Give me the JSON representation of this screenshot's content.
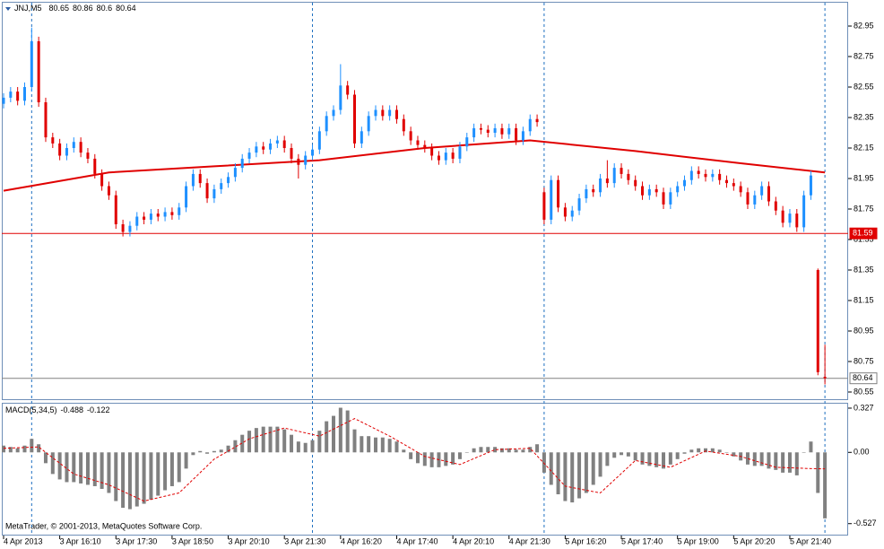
{
  "chart_data": [
    {
      "type": "candlestick",
      "title": "JNJ,M5",
      "categories": [
        "4 Apr 2013",
        null,
        null,
        null,
        null,
        null,
        null,
        null,
        "3 Apr 16:10",
        null,
        null,
        null,
        null,
        null,
        null,
        null,
        "3 Apr 17:30",
        null,
        null,
        null,
        null,
        null,
        null,
        null,
        "3 Apr 18:50",
        null,
        null,
        null,
        null,
        null,
        null,
        null,
        "3 Apr 20:10",
        null,
        null,
        null,
        null,
        null,
        null,
        null,
        "3 Apr 21:30",
        null,
        null,
        null,
        null,
        null,
        null,
        null,
        "4 Apr 16:20",
        null,
        null,
        null,
        null,
        null,
        null,
        null,
        "4 Apr 17:40",
        null,
        null,
        null,
        null,
        null,
        null,
        null,
        "4 Apr 20:10",
        null,
        null,
        null,
        null,
        null,
        null,
        null,
        "4 Apr 21:30",
        null,
        null,
        null,
        null,
        null,
        null,
        null,
        "5 Apr 16:20",
        null,
        null,
        null,
        null,
        null,
        null,
        null,
        "5 Apr 17:40",
        null,
        null,
        null,
        null,
        null,
        null,
        null,
        "5 Apr 19:00",
        null,
        null,
        null,
        null,
        null,
        null,
        null,
        "5 Apr 20:20",
        null,
        null,
        null,
        null,
        null,
        null,
        null,
        "5 Apr 21:40",
        null,
        null,
        null,
        null,
        null
      ],
      "ohlc": [
        [
          82.44,
          82.51,
          82.41,
          82.48
        ],
        [
          82.48,
          82.55,
          82.45,
          82.52
        ],
        [
          82.52,
          82.55,
          82.43,
          82.46
        ],
        [
          82.46,
          82.58,
          82.43,
          82.55
        ],
        [
          82.55,
          82.94,
          82.52,
          82.85
        ],
        [
          82.85,
          82.88,
          82.42,
          82.45
        ],
        [
          82.45,
          82.48,
          82.19,
          82.22
        ],
        [
          82.22,
          82.25,
          82.15,
          82.18
        ],
        [
          82.18,
          82.21,
          82.07,
          82.1
        ],
        [
          82.1,
          82.18,
          82.07,
          82.15
        ],
        [
          82.15,
          82.22,
          82.12,
          82.19
        ],
        [
          82.19,
          82.22,
          82.09,
          82.12
        ],
        [
          82.12,
          82.15,
          82.05,
          82.08
        ],
        [
          82.08,
          82.11,
          81.95,
          81.98
        ],
        [
          81.98,
          82.01,
          81.87,
          81.9
        ],
        [
          81.9,
          81.93,
          81.81,
          81.84
        ],
        [
          81.84,
          81.87,
          81.62,
          81.65
        ],
        [
          81.65,
          81.68,
          81.57,
          81.6
        ],
        [
          81.6,
          81.67,
          81.57,
          81.64
        ],
        [
          81.64,
          81.73,
          81.61,
          81.7
        ],
        [
          81.7,
          81.73,
          81.65,
          81.68
        ],
        [
          81.68,
          81.75,
          81.65,
          81.72
        ],
        [
          81.72,
          81.75,
          81.67,
          81.7
        ],
        [
          81.7,
          81.76,
          81.67,
          81.73
        ],
        [
          81.73,
          81.76,
          81.68,
          81.71
        ],
        [
          81.71,
          81.79,
          81.68,
          81.76
        ],
        [
          81.76,
          81.93,
          81.73,
          81.9
        ],
        [
          81.9,
          82.01,
          81.87,
          81.98
        ],
        [
          81.98,
          82.01,
          81.89,
          81.92
        ],
        [
          81.92,
          81.95,
          81.79,
          81.82
        ],
        [
          81.82,
          81.91,
          81.79,
          81.88
        ],
        [
          81.88,
          81.95,
          81.85,
          81.92
        ],
        [
          81.92,
          81.99,
          81.89,
          81.96
        ],
        [
          81.96,
          82.05,
          81.93,
          82.02
        ],
        [
          82.02,
          82.11,
          81.99,
          82.08
        ],
        [
          82.08,
          82.15,
          82.05,
          82.12
        ],
        [
          82.12,
          82.19,
          82.09,
          82.16
        ],
        [
          82.16,
          82.19,
          82.11,
          82.14
        ],
        [
          82.14,
          82.21,
          82.11,
          82.18
        ],
        [
          82.18,
          82.23,
          82.15,
          82.2
        ],
        [
          82.2,
          82.23,
          82.12,
          82.15
        ],
        [
          82.15,
          82.18,
          82.05,
          82.08
        ],
        [
          82.08,
          82.11,
          81.95,
          82.04
        ],
        [
          82.04,
          82.13,
          82.01,
          82.1
        ],
        [
          82.1,
          82.17,
          82.07,
          82.14
        ],
        [
          82.14,
          82.29,
          82.11,
          82.26
        ],
        [
          82.26,
          82.39,
          82.23,
          82.36
        ],
        [
          82.36,
          82.43,
          82.33,
          82.4
        ],
        [
          82.4,
          82.7,
          82.37,
          82.56
        ],
        [
          82.56,
          82.59,
          82.47,
          82.5
        ],
        [
          82.5,
          82.53,
          82.15,
          82.18
        ],
        [
          82.18,
          82.29,
          82.15,
          82.26
        ],
        [
          82.26,
          82.39,
          82.23,
          82.36
        ],
        [
          82.36,
          82.43,
          82.33,
          82.4
        ],
        [
          82.4,
          82.43,
          82.33,
          82.36
        ],
        [
          82.36,
          82.43,
          82.33,
          82.4
        ],
        [
          82.4,
          82.43,
          82.31,
          82.34
        ],
        [
          82.34,
          82.37,
          82.23,
          82.26
        ],
        [
          82.26,
          82.29,
          82.17,
          82.2
        ],
        [
          82.2,
          82.23,
          82.14,
          82.17
        ],
        [
          82.17,
          82.2,
          82.12,
          82.15
        ],
        [
          82.15,
          82.18,
          82.07,
          82.1
        ],
        [
          82.1,
          82.13,
          82.04,
          82.07
        ],
        [
          82.07,
          82.15,
          82.04,
          82.12
        ],
        [
          82.12,
          82.15,
          82.05,
          82.08
        ],
        [
          82.08,
          82.19,
          82.05,
          82.16
        ],
        [
          82.16,
          82.25,
          82.13,
          82.22
        ],
        [
          82.22,
          82.31,
          82.19,
          82.28
        ],
        [
          82.28,
          82.31,
          82.24,
          82.27
        ],
        [
          82.27,
          82.3,
          82.22,
          82.25
        ],
        [
          82.25,
          82.31,
          82.22,
          82.28
        ],
        [
          82.28,
          82.31,
          82.21,
          82.24
        ],
        [
          82.24,
          82.31,
          82.21,
          82.28
        ],
        [
          82.28,
          82.31,
          82.17,
          82.2
        ],
        [
          82.2,
          82.29,
          82.17,
          82.26
        ],
        [
          82.26,
          82.37,
          82.23,
          82.34
        ],
        [
          82.34,
          82.37,
          82.29,
          82.32
        ],
        [
          81.86,
          81.89,
          81.65,
          81.68
        ],
        [
          81.68,
          81.97,
          81.65,
          81.94
        ],
        [
          81.94,
          81.97,
          81.73,
          81.76
        ],
        [
          81.76,
          81.79,
          81.67,
          81.7
        ],
        [
          81.7,
          81.77,
          81.67,
          81.74
        ],
        [
          81.74,
          81.85,
          81.71,
          81.82
        ],
        [
          81.82,
          81.91,
          81.79,
          81.88
        ],
        [
          81.88,
          81.91,
          81.83,
          81.86
        ],
        [
          81.86,
          81.98,
          81.83,
          81.95
        ],
        [
          81.95,
          82.07,
          81.89,
          81.92
        ],
        [
          81.92,
          82.05,
          81.89,
          82.02
        ],
        [
          82.02,
          82.05,
          81.95,
          81.98
        ],
        [
          81.98,
          82.01,
          81.91,
          81.94
        ],
        [
          81.94,
          81.97,
          81.87,
          81.9
        ],
        [
          81.9,
          81.93,
          81.81,
          81.84
        ],
        [
          81.84,
          81.91,
          81.81,
          81.88
        ],
        [
          81.88,
          81.91,
          81.83,
          81.86
        ],
        [
          81.86,
          81.89,
          81.75,
          81.78
        ],
        [
          81.78,
          81.89,
          81.75,
          81.86
        ],
        [
          81.86,
          81.93,
          81.83,
          81.9
        ],
        [
          81.9,
          81.97,
          81.87,
          81.94
        ],
        [
          81.94,
          82.03,
          81.91,
          82.0
        ],
        [
          82.0,
          82.03,
          81.95,
          81.98
        ],
        [
          81.98,
          82.01,
          81.93,
          81.96
        ],
        [
          81.96,
          82.01,
          81.93,
          81.98
        ],
        [
          81.98,
          82.01,
          81.91,
          81.94
        ],
        [
          81.94,
          81.97,
          81.89,
          81.92
        ],
        [
          81.92,
          81.95,
          81.87,
          81.9
        ],
        [
          81.9,
          81.93,
          81.83,
          81.86
        ],
        [
          81.86,
          81.89,
          81.75,
          81.78
        ],
        [
          81.78,
          81.87,
          81.75,
          81.84
        ],
        [
          81.84,
          81.93,
          81.81,
          81.9
        ],
        [
          81.9,
          81.93,
          81.77,
          81.8
        ],
        [
          81.8,
          81.83,
          81.71,
          81.74
        ],
        [
          81.74,
          81.77,
          81.63,
          81.66
        ],
        [
          81.66,
          81.75,
          81.63,
          81.72
        ],
        [
          81.72,
          81.75,
          81.6,
          81.63
        ],
        [
          81.63,
          81.87,
          81.6,
          81.84
        ],
        [
          81.84,
          82.0,
          81.81,
          81.97
        ],
        [
          81.35,
          81.36,
          80.66,
          80.68
        ],
        [
          80.65,
          80.86,
          80.6,
          80.64
        ]
      ],
      "up_color": "#1e90ff",
      "down_color": "#e00000",
      "ma": {
        "x": [
          0,
          15,
          30,
          45,
          60,
          75,
          90,
          105,
          117
        ],
        "values": [
          81.87,
          81.99,
          82.03,
          82.07,
          82.15,
          82.2,
          82.13,
          82.05,
          81.99
        ],
        "color": "#e00000"
      },
      "levels": [
        {
          "value": 81.59,
          "color": "#e00000"
        },
        {
          "value": 80.64,
          "color": "#808080"
        }
      ],
      "ylim": [
        80.497,
        83.109
      ],
      "yticks": [
        82.95,
        82.75,
        82.55,
        82.35,
        82.15,
        81.95,
        81.75,
        81.55,
        81.35,
        81.15,
        80.95,
        80.75,
        80.55
      ]
    },
    {
      "type": "macd",
      "title": "MACD(5,34,5)",
      "values": [
        0.05,
        0.04,
        0.03,
        0.05,
        0.1,
        0.06,
        -0.08,
        -0.16,
        -0.2,
        -0.22,
        -0.22,
        -0.23,
        -0.24,
        -0.25,
        -0.27,
        -0.3,
        -0.36,
        -0.41,
        -0.42,
        -0.4,
        -0.38,
        -0.35,
        -0.32,
        -0.28,
        -0.25,
        -0.22,
        -0.12,
        -0.02,
        0.01,
        -0.01,
        0.01,
        0.02,
        0.05,
        0.09,
        0.13,
        0.16,
        0.18,
        0.19,
        0.19,
        0.19,
        0.17,
        0.13,
        0.08,
        0.07,
        0.09,
        0.16,
        0.23,
        0.27,
        0.33,
        0.31,
        0.17,
        0.12,
        0.12,
        0.11,
        0.11,
        0.1,
        0.08,
        0.02,
        -0.05,
        -0.08,
        -0.1,
        -0.11,
        -0.11,
        -0.1,
        -0.09,
        -0.05,
        0,
        0.03,
        0.04,
        0.04,
        0.04,
        0.03,
        0.03,
        0.02,
        0.02,
        0.04,
        0.06,
        -0.15,
        -0.24,
        -0.31,
        -0.36,
        -0.37,
        -0.34,
        -0.3,
        -0.24,
        -0.18,
        -0.1,
        -0.04,
        -0.02,
        -0.03,
        -0.06,
        -0.09,
        -0.1,
        -0.11,
        -0.12,
        -0.09,
        -0.05,
        -0.01,
        0.02,
        0.03,
        0.03,
        0.03,
        0.02,
        0,
        -0.03,
        -0.06,
        -0.09,
        -0.1,
        -0.1,
        -0.12,
        -0.13,
        -0.15,
        -0.15,
        -0.17,
        0,
        0.08,
        -0.3,
        -0.488
      ],
      "color": "#808080",
      "signal": {
        "x": [
          0,
          5,
          10,
          15,
          20,
          25,
          30,
          35,
          40,
          45,
          50,
          55,
          60,
          65,
          70,
          75,
          80,
          85,
          90,
          95,
          100,
          105,
          110,
          115,
          117
        ],
        "values": [
          0.03,
          0.04,
          -0.16,
          -0.24,
          -0.36,
          -0.3,
          -0.05,
          0.1,
          0.18,
          0.12,
          0.25,
          0.12,
          -0.03,
          -0.09,
          0.02,
          0.03,
          -0.25,
          -0.3,
          -0.06,
          -0.11,
          0.01,
          -0.03,
          -0.11,
          -0.12,
          -0.122
        ],
        "color": "#e00000"
      },
      "ylim": [
        -0.615,
        0.36
      ],
      "yticks": [
        0.327,
        {
          "value": 0,
          "label": "0.00"
        },
        -0.527
      ],
      "note": "MetaTrader, © 2001-2013, MetaQuotes Software Corp."
    }
  ]
}
